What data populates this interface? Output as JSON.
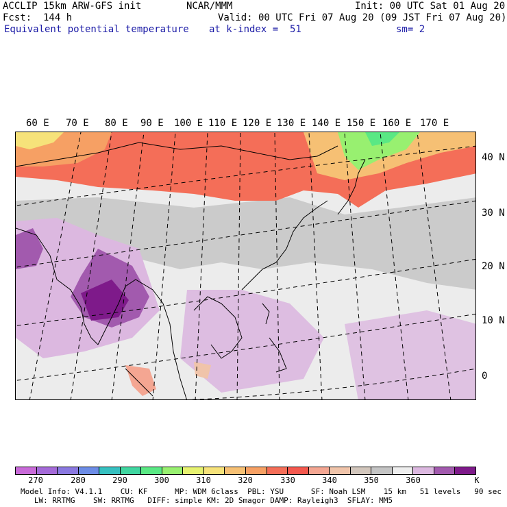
{
  "header": {
    "model": "ACCLIP 15km ARW-GFS init",
    "center": "NCAR/MMM",
    "init": "Init: 00 UTC Sat 01 Aug 20",
    "fcst": "Fcst:  144 h",
    "valid": "Valid: 00 UTC Fri 07 Aug 20 (09 JST Fri 07 Aug 20)",
    "field": "Equivalent potential temperature",
    "level": "at k-index =  51",
    "smooth": "sm= 2"
  },
  "map": {
    "lon_labels": [
      "60 E",
      "70 E",
      "80 E",
      "90 E",
      "100 E",
      "110 E",
      "120 E",
      "130 E",
      "140 E",
      "150 E",
      "160 E",
      "170 E"
    ],
    "lat_labels": [
      "40 N",
      "30 N",
      "20 N",
      "10 N",
      "0"
    ]
  },
  "colorbar": {
    "colors": [
      "#c86ad8",
      "#a46ad8",
      "#8a78e0",
      "#6c8ce6",
      "#36c0c0",
      "#40d6a0",
      "#5ae884",
      "#98f070",
      "#e6f270",
      "#f6e27a",
      "#f6c074",
      "#f6a064",
      "#f46e58",
      "#f4584e",
      "#f4a692",
      "#f0c4aa",
      "#d2c6bc",
      "#c4c4c4",
      "#eeeeee",
      "#dcb8e0",
      "#a25aae",
      "#7e1a8a"
    ],
    "labels": [
      "270",
      "280",
      "290",
      "300",
      "310",
      "320",
      "330",
      "340",
      "350",
      "360"
    ],
    "unit": "K"
  },
  "footer": {
    "line1": "Model Info: V4.1.1    CU: KF      MP: WDM 6class  PBL: YSU      SF: Noah LSM    15 km   51 levels   90 sec",
    "line2": "   LW: RRTMG    SW: RRTMG   DIFF: simple KM: 2D Smagor DAMP: Rayleigh3  SFLAY: MM5"
  }
}
